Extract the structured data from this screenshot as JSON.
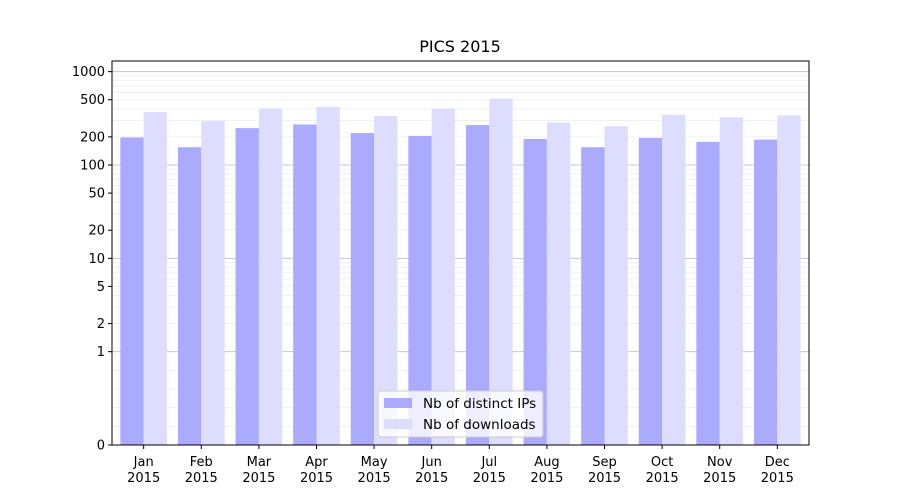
{
  "chart_data": {
    "type": "bar",
    "title": "PICS 2015",
    "xlabel": "",
    "ylabel": "",
    "y_scale": "symlog",
    "ylim": [
      0,
      1300
    ],
    "y_ticks": [
      0,
      1,
      2,
      5,
      10,
      20,
      50,
      100,
      200,
      500,
      1000
    ],
    "y_tick_labels": [
      "0",
      "1",
      "2",
      "5",
      "10",
      "20",
      "50",
      "100",
      "200",
      "500",
      "1000"
    ],
    "grid": true,
    "legend_position": "bottom-center",
    "categories": [
      {
        "month": "Jan",
        "year": "2015"
      },
      {
        "month": "Feb",
        "year": "2015"
      },
      {
        "month": "Mar",
        "year": "2015"
      },
      {
        "month": "Apr",
        "year": "2015"
      },
      {
        "month": "May",
        "year": "2015"
      },
      {
        "month": "Jun",
        "year": "2015"
      },
      {
        "month": "Jul",
        "year": "2015"
      },
      {
        "month": "Aug",
        "year": "2015"
      },
      {
        "month": "Sep",
        "year": "2015"
      },
      {
        "month": "Oct",
        "year": "2015"
      },
      {
        "month": "Nov",
        "year": "2015"
      },
      {
        "month": "Dec",
        "year": "2015"
      }
    ],
    "series": [
      {
        "name": "Nb of distinct IPs",
        "color": "#aaaaff",
        "values": [
          197,
          155,
          248,
          272,
          220,
          205,
          268,
          190,
          155,
          195,
          177,
          187
        ]
      },
      {
        "name": "Nb of downloads",
        "color": "#ddddff",
        "values": [
          370,
          295,
          400,
          420,
          335,
          400,
          515,
          285,
          260,
          345,
          325,
          340
        ]
      }
    ]
  }
}
